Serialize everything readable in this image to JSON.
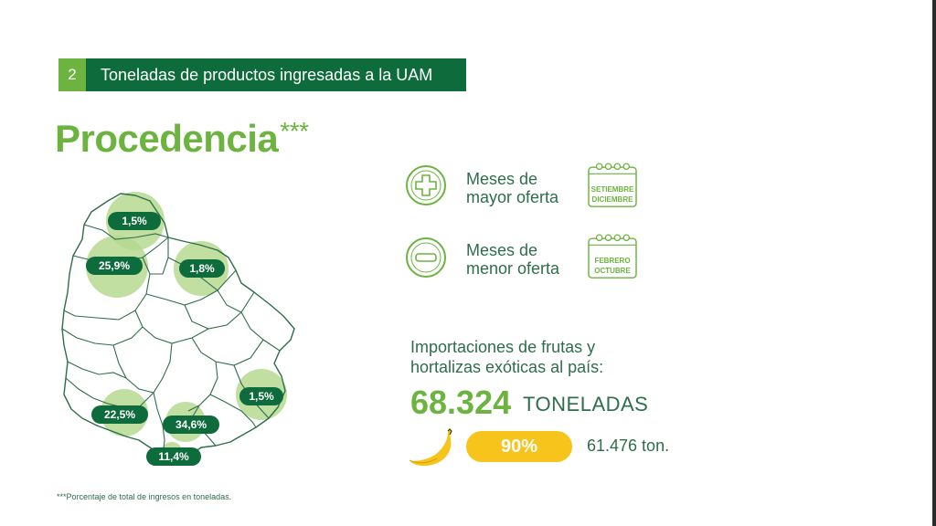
{
  "header": {
    "number": "2",
    "title": "Toneladas de productos ingresadas a la UAM"
  },
  "title": {
    "main": "Procedencia",
    "mark": "***"
  },
  "map": {
    "regions": [
      {
        "label": "1,5%"
      },
      {
        "label": "25,9%"
      },
      {
        "label": "1,8%"
      },
      {
        "label": "1,5%"
      },
      {
        "label": "22,5%"
      },
      {
        "label": "34,6%"
      },
      {
        "label": "11,4%"
      }
    ]
  },
  "offer": {
    "max": {
      "label_line1": "Meses de",
      "label_line2": "mayor oferta",
      "month1": "SETIEMBRE",
      "month2": "DICIEMBRE",
      "icon": "plus-icon"
    },
    "min": {
      "label_line1": "Meses de",
      "label_line2": "menor oferta",
      "month1": "FEBRERO",
      "month2": "OCTUBRE",
      "icon": "minus-icon"
    }
  },
  "imports": {
    "label_line1": "Importaciones de frutas y",
    "label_line2": "hortalizas exóticas al país:",
    "value": "68.324",
    "unit": "TONELADAS",
    "banana_percent": "90%",
    "banana_tons": "61.476 ton."
  },
  "footnote": "***Porcentaje de total de ingresos en toneladas.",
  "colors": {
    "dark_green": "#0e6b3b",
    "light_green": "#6cb33f",
    "circle_green": "#b5d98f",
    "yellow": "#f6c41a",
    "text_green": "#2f6d4c"
  }
}
